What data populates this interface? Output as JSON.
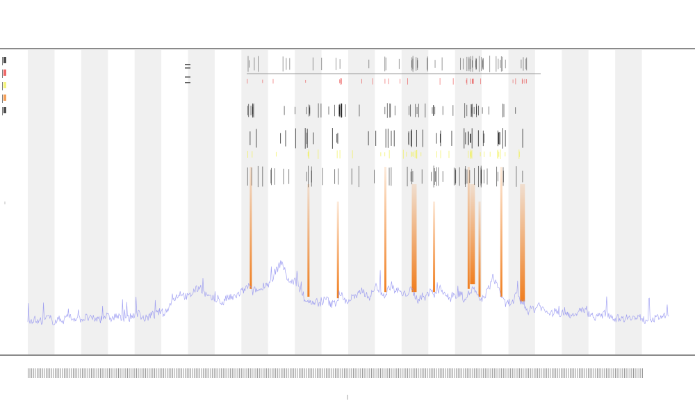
{
  "header": {
    "title": "",
    "subtitle_1": "",
    "subtitle_2": ""
  },
  "chart_data": {
    "type": "line",
    "title": "",
    "xlabel": "",
    "ylabel": "",
    "grid": false,
    "legend_position": "top-left",
    "band_count": 24,
    "colors": {
      "line": "#8c8cf0",
      "band": "#f0f0f0",
      "axis": "#444444",
      "spike": "#f07814",
      "ticks": "#000000",
      "highlight": "#f0f046",
      "red_tick": "#e62828"
    },
    "series": [
      {
        "values": [
          0.05,
          0.04,
          0.05,
          0.03,
          0.04,
          0.04,
          0.06,
          0.05,
          0.03,
          0.04,
          0.05,
          0.04,
          0.07,
          0.06,
          0.05,
          0.06,
          0.05,
          0.05,
          0.06,
          0.05,
          0.05,
          0.05,
          0.04,
          0.06,
          0.07,
          0.06,
          0.05,
          0.07,
          0.06,
          0.05,
          0.06,
          0.05,
          0.07,
          0.08,
          0.09,
          0.06,
          0.05,
          0.06,
          0.08,
          0.07,
          0.09,
          0.1,
          0.08,
          0.12,
          0.15,
          0.18,
          0.2,
          0.22,
          0.2,
          0.19,
          0.2,
          0.23,
          0.24,
          0.26,
          0.22,
          0.2,
          0.18,
          0.18,
          0.17,
          0.16,
          0.15,
          0.18,
          0.19,
          0.18,
          0.2,
          0.21,
          0.23,
          0.24,
          0.27,
          0.22,
          0.24,
          0.23,
          0.25,
          0.28,
          0.27,
          0.3,
          0.35,
          0.38,
          0.42,
          0.36,
          0.3,
          0.28,
          0.3,
          0.26,
          0.22,
          0.18,
          0.17,
          0.15,
          0.14,
          0.16,
          0.14,
          0.17,
          0.18,
          0.14,
          0.15,
          0.16,
          0.22,
          0.18,
          0.16,
          0.17,
          0.2,
          0.18,
          0.22,
          0.24,
          0.2,
          0.19,
          0.22,
          0.26,
          0.24,
          0.21,
          0.2,
          0.25,
          0.27,
          0.22,
          0.24,
          0.2,
          0.21,
          0.22,
          0.24,
          0.2,
          0.17,
          0.2,
          0.18,
          0.21,
          0.24,
          0.2,
          0.22,
          0.25,
          0.22,
          0.19,
          0.18,
          0.21,
          0.19,
          0.22,
          0.18,
          0.2,
          0.22,
          0.25,
          0.2,
          0.17,
          0.18,
          0.22,
          0.26,
          0.32,
          0.28,
          0.24,
          0.17,
          0.14,
          0.16,
          0.15,
          0.2,
          0.18,
          0.14,
          0.12,
          0.1,
          0.12,
          0.11,
          0.15,
          0.12,
          0.1,
          0.09,
          0.08,
          0.1,
          0.09,
          0.08,
          0.1,
          0.09,
          0.07,
          0.06,
          0.08,
          0.12,
          0.1,
          0.09,
          0.08,
          0.06,
          0.07,
          0.06,
          0.08,
          0.09,
          0.07,
          0.06,
          0.05,
          0.06,
          0.05,
          0.06,
          0.07,
          0.06,
          0.05,
          0.06,
          0.05,
          0.04,
          0.06,
          0.05,
          0.05,
          0.06,
          0.07,
          0.06,
          0.08
        ]
      }
    ],
    "spike_positions": [
      0.348,
      0.438,
      0.484,
      0.558,
      0.603,
      0.634,
      0.688,
      0.694,
      0.705,
      0.739,
      0.772
    ],
    "ylim": [
      0,
      1
    ]
  }
}
